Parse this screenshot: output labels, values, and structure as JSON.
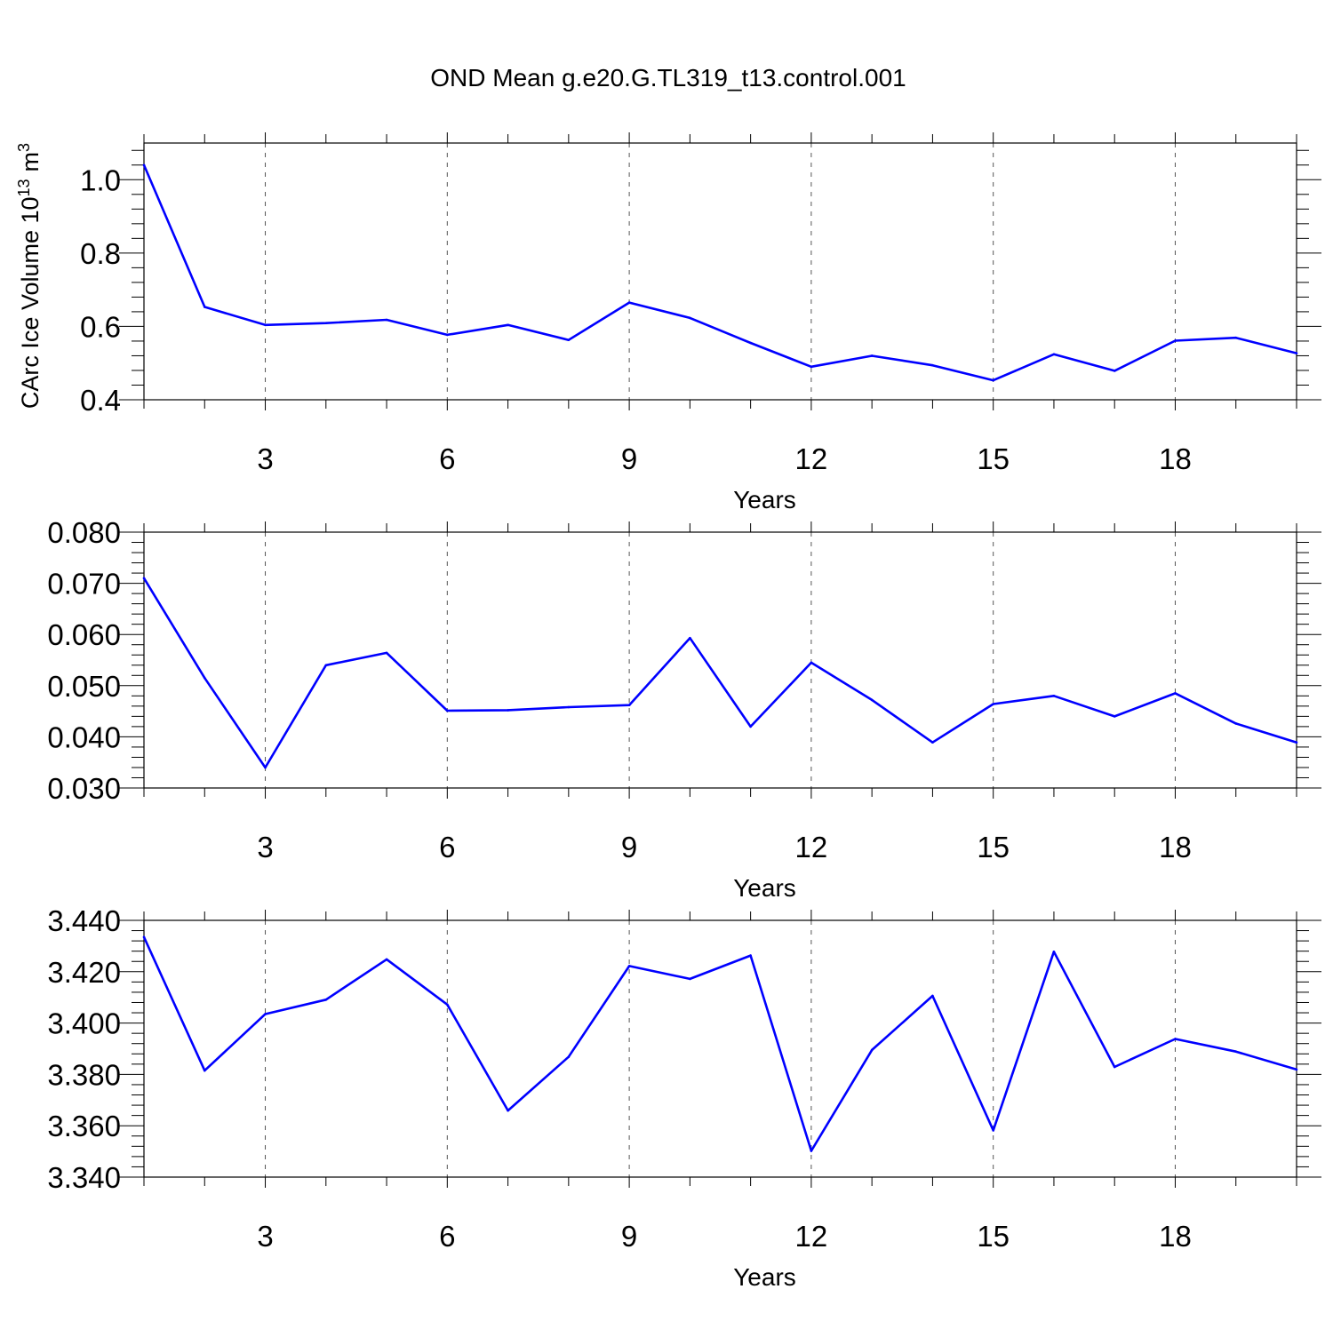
{
  "title": "OND Mean g.e20.G.TL319_t13.control.001",
  "colors": {
    "line": "#0000ff",
    "axis": "#000000",
    "grid": "#555555"
  },
  "chart_data": [
    {
      "type": "line",
      "xlabel": "Years",
      "ylabel_main": "CArc Ice Volume 10",
      "ylabel_exp": "13",
      "ylabel_unit": "m",
      "ylabel_unit_exp": "3",
      "xlim": [
        1,
        20
      ],
      "ylim": [
        0.4,
        1.1
      ],
      "yticks": [
        0.4,
        0.6,
        0.8,
        1.0
      ],
      "ytick_labels": [
        "0.4",
        "0.6",
        "0.8",
        "1.0"
      ],
      "xticks": [
        3,
        6,
        9,
        12,
        15,
        18
      ],
      "xtick_labels": [
        "3",
        "6",
        "9",
        "12",
        "15",
        "18"
      ],
      "grid_x": true,
      "x": [
        1,
        2,
        3,
        4,
        5,
        6,
        7,
        8,
        9,
        10,
        11,
        12,
        13,
        14,
        15,
        16,
        17,
        18,
        19,
        20
      ],
      "values": [
        1.04,
        0.653,
        0.604,
        0.609,
        0.618,
        0.577,
        0.604,
        0.563,
        0.665,
        0.623,
        0.555,
        0.49,
        0.52,
        0.494,
        0.453,
        0.524,
        0.479,
        0.561,
        0.569,
        0.527
      ]
    },
    {
      "type": "line",
      "xlabel": "Years",
      "ylabel_main": "",
      "ylabel_exp": "",
      "ylabel_unit": "",
      "ylabel_unit_exp": "",
      "xlim": [
        1,
        20
      ],
      "ylim": [
        0.03,
        0.08
      ],
      "yticks": [
        0.03,
        0.04,
        0.05,
        0.06,
        0.07,
        0.08
      ],
      "ytick_labels": [
        "0.030",
        "0.040",
        "0.050",
        "0.060",
        "0.070",
        "0.080"
      ],
      "xticks": [
        3,
        6,
        9,
        12,
        15,
        18
      ],
      "xtick_labels": [
        "3",
        "6",
        "9",
        "12",
        "15",
        "18"
      ],
      "grid_x": true,
      "x": [
        1,
        2,
        3,
        4,
        5,
        6,
        7,
        8,
        9,
        10,
        11,
        12,
        13,
        14,
        15,
        16,
        17,
        18,
        19,
        20
      ],
      "values": [
        0.071,
        0.0515,
        0.034,
        0.054,
        0.0564,
        0.0451,
        0.0452,
        0.0458,
        0.0462,
        0.0593,
        0.042,
        0.0545,
        0.0472,
        0.0389,
        0.0464,
        0.048,
        0.044,
        0.0485,
        0.0426,
        0.0389
      ]
    },
    {
      "type": "line",
      "xlabel": "Years",
      "ylabel_main": "",
      "ylabel_exp": "",
      "ylabel_unit": "",
      "ylabel_unit_exp": "",
      "xlim": [
        1,
        20
      ],
      "ylim": [
        3.34,
        3.44
      ],
      "yticks": [
        3.34,
        3.36,
        3.38,
        3.4,
        3.42,
        3.44
      ],
      "ytick_labels": [
        "3.340",
        "3.360",
        "3.380",
        "3.400",
        "3.420",
        "3.440"
      ],
      "xticks": [
        3,
        6,
        9,
        12,
        15,
        18
      ],
      "xtick_labels": [
        "3",
        "6",
        "9",
        "12",
        "15",
        "18"
      ],
      "grid_x": true,
      "x": [
        1,
        2,
        3,
        4,
        5,
        6,
        7,
        8,
        9,
        10,
        11,
        12,
        13,
        14,
        15,
        16,
        17,
        18,
        19,
        20
      ],
      "values": [
        3.4335,
        3.3815,
        3.4035,
        3.4091,
        3.4248,
        3.4072,
        3.3659,
        3.3868,
        3.4222,
        3.4172,
        3.4263,
        3.3502,
        3.3895,
        3.4106,
        3.3582,
        3.4278,
        3.3829,
        3.3938,
        3.3889,
        3.3819
      ]
    }
  ]
}
